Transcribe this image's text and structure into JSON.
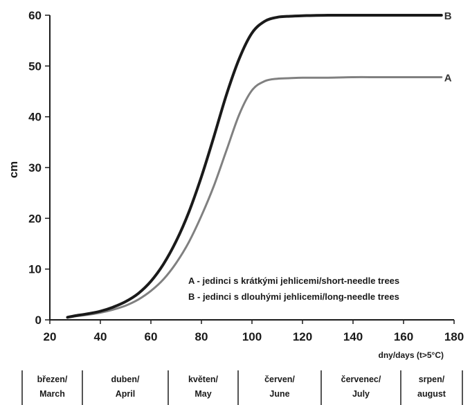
{
  "chart_data": {
    "type": "line",
    "title": "",
    "xlabel": "dny/days (t>5°C)",
    "ylabel": "cm",
    "xlim": [
      20,
      180
    ],
    "ylim": [
      0,
      60
    ],
    "x_ticks": [
      20,
      40,
      60,
      80,
      100,
      120,
      140,
      160,
      180
    ],
    "y_ticks": [
      0,
      10,
      20,
      30,
      40,
      50,
      60
    ],
    "grid": false,
    "legend_position": "bottom-right",
    "colors": {
      "A": "#808080",
      "B": "#1a1a1a"
    },
    "series": [
      {
        "name": "A",
        "end_label": "A",
        "legend_label": "A - jedinci s krátkými jehlicemi/short-needle trees",
        "x": [
          27,
          30,
          35,
          40,
          45,
          50,
          55,
          60,
          65,
          70,
          75,
          80,
          85,
          90,
          95,
          100,
          105,
          110,
          115,
          120,
          130,
          140,
          150,
          160,
          170,
          175
        ],
        "y": [
          0.5,
          0.7,
          1.0,
          1.4,
          2.0,
          2.8,
          4.0,
          5.7,
          8.0,
          11.2,
          15.3,
          20.5,
          26.5,
          33.5,
          40.5,
          45.2,
          47.0,
          47.5,
          47.6,
          47.7,
          47.7,
          47.8,
          47.8,
          47.8,
          47.8,
          47.8
        ]
      },
      {
        "name": "B",
        "end_label": "B",
        "legend_label": "B - jedinci s dlouhými jehlicemi/long-needle trees",
        "x": [
          27,
          30,
          35,
          40,
          45,
          50,
          55,
          60,
          65,
          70,
          75,
          80,
          85,
          90,
          95,
          100,
          105,
          110,
          115,
          120,
          130,
          140,
          150,
          160,
          170,
          175
        ],
        "y": [
          0.5,
          0.8,
          1.2,
          1.7,
          2.5,
          3.6,
          5.2,
          7.6,
          11.0,
          15.5,
          21.2,
          28.2,
          36.2,
          44.5,
          51.5,
          56.5,
          58.8,
          59.6,
          59.8,
          59.9,
          60.0,
          60.0,
          60.0,
          60.0,
          60.0,
          60.0
        ]
      }
    ],
    "months": [
      {
        "cz": "březen/",
        "en": "March"
      },
      {
        "cz": "duben/",
        "en": "April"
      },
      {
        "cz": "květen/",
        "en": "May"
      },
      {
        "cz": "červen/",
        "en": "June"
      },
      {
        "cz": "červenec/",
        "en": "July"
      },
      {
        "cz": "srpen/",
        "en": "august"
      }
    ]
  }
}
